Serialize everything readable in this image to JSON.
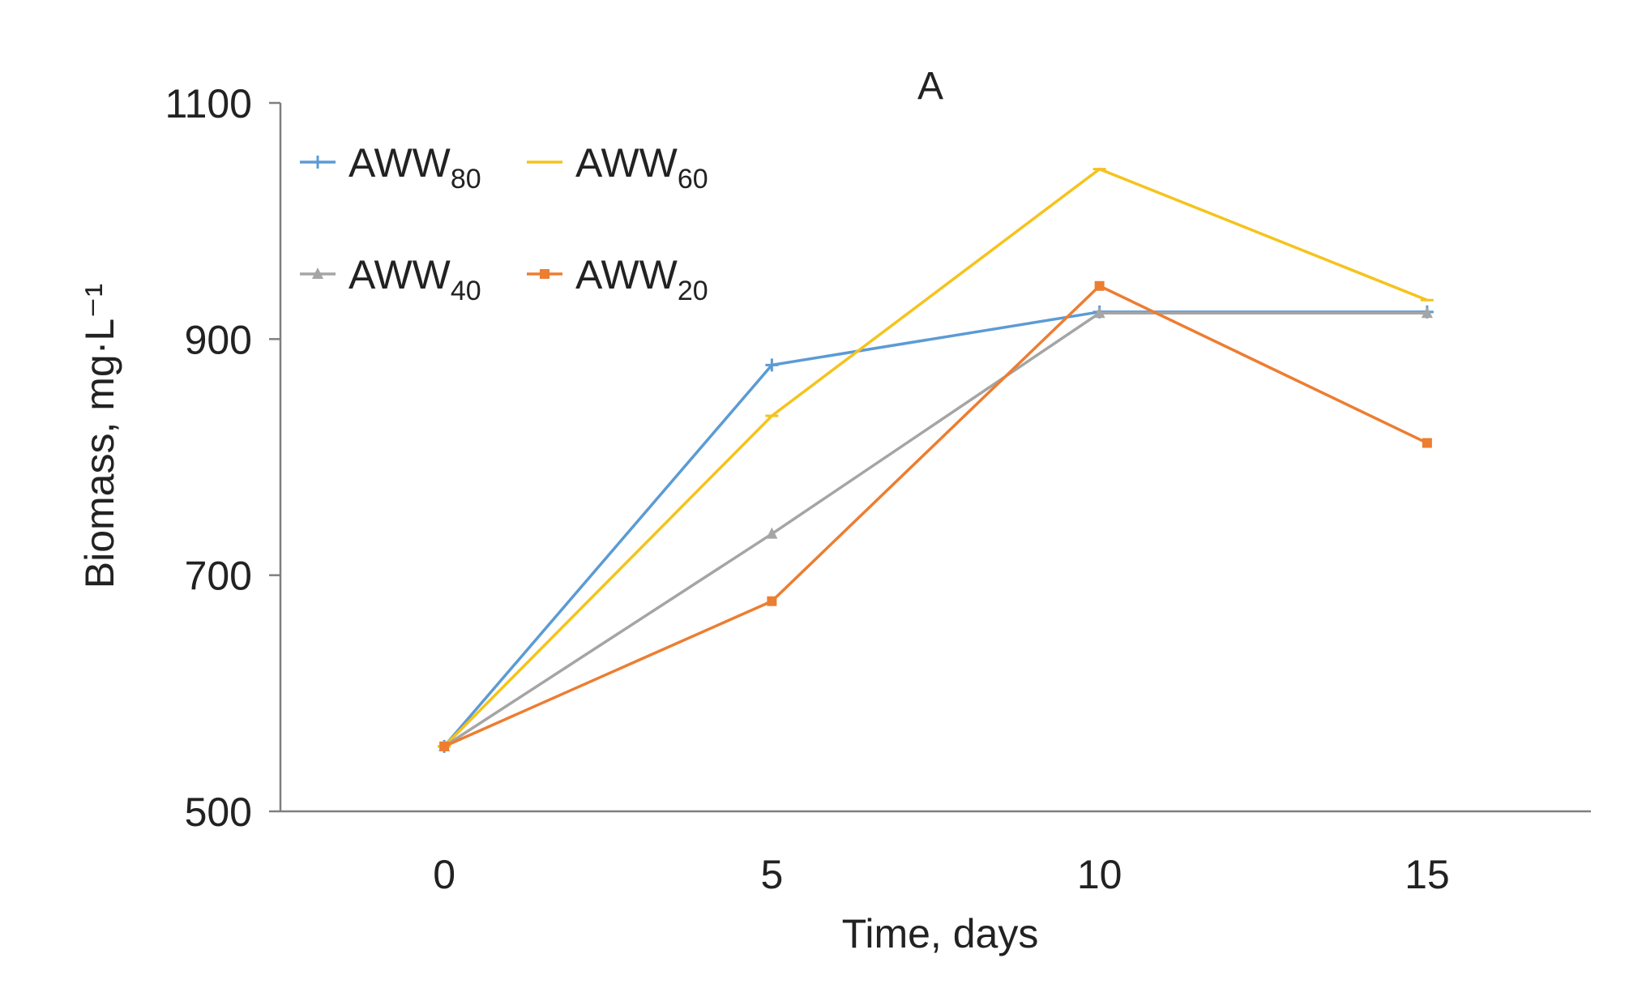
{
  "chart_data": {
    "type": "line",
    "title": "A",
    "xlabel": "Time, days",
    "ylabel": "Biomass, mg·L⁻¹",
    "x": [
      0,
      5,
      10,
      15
    ],
    "xlim": [
      -2.5,
      17.5
    ],
    "ylim": [
      500,
      1100
    ],
    "yticks": [
      500,
      700,
      900,
      1100
    ],
    "grid": false,
    "legend_position": "top-left",
    "series": [
      {
        "name": "AWW",
        "sub": "80",
        "marker": "plus",
        "color": "#5b9bd5",
        "values": [
          555,
          878,
          923,
          923
        ]
      },
      {
        "name": "AWW",
        "sub": "60",
        "marker": "dash",
        "color": "#f5c31c",
        "values": [
          555,
          835,
          1044,
          933
        ]
      },
      {
        "name": "AWW",
        "sub": "40",
        "marker": "triangle",
        "color": "#a5a5a5",
        "values": [
          555,
          735,
          922,
          922
        ]
      },
      {
        "name": "AWW",
        "sub": "20",
        "marker": "square",
        "color": "#ed7d31",
        "values": [
          555,
          678,
          945,
          812
        ]
      }
    ]
  }
}
